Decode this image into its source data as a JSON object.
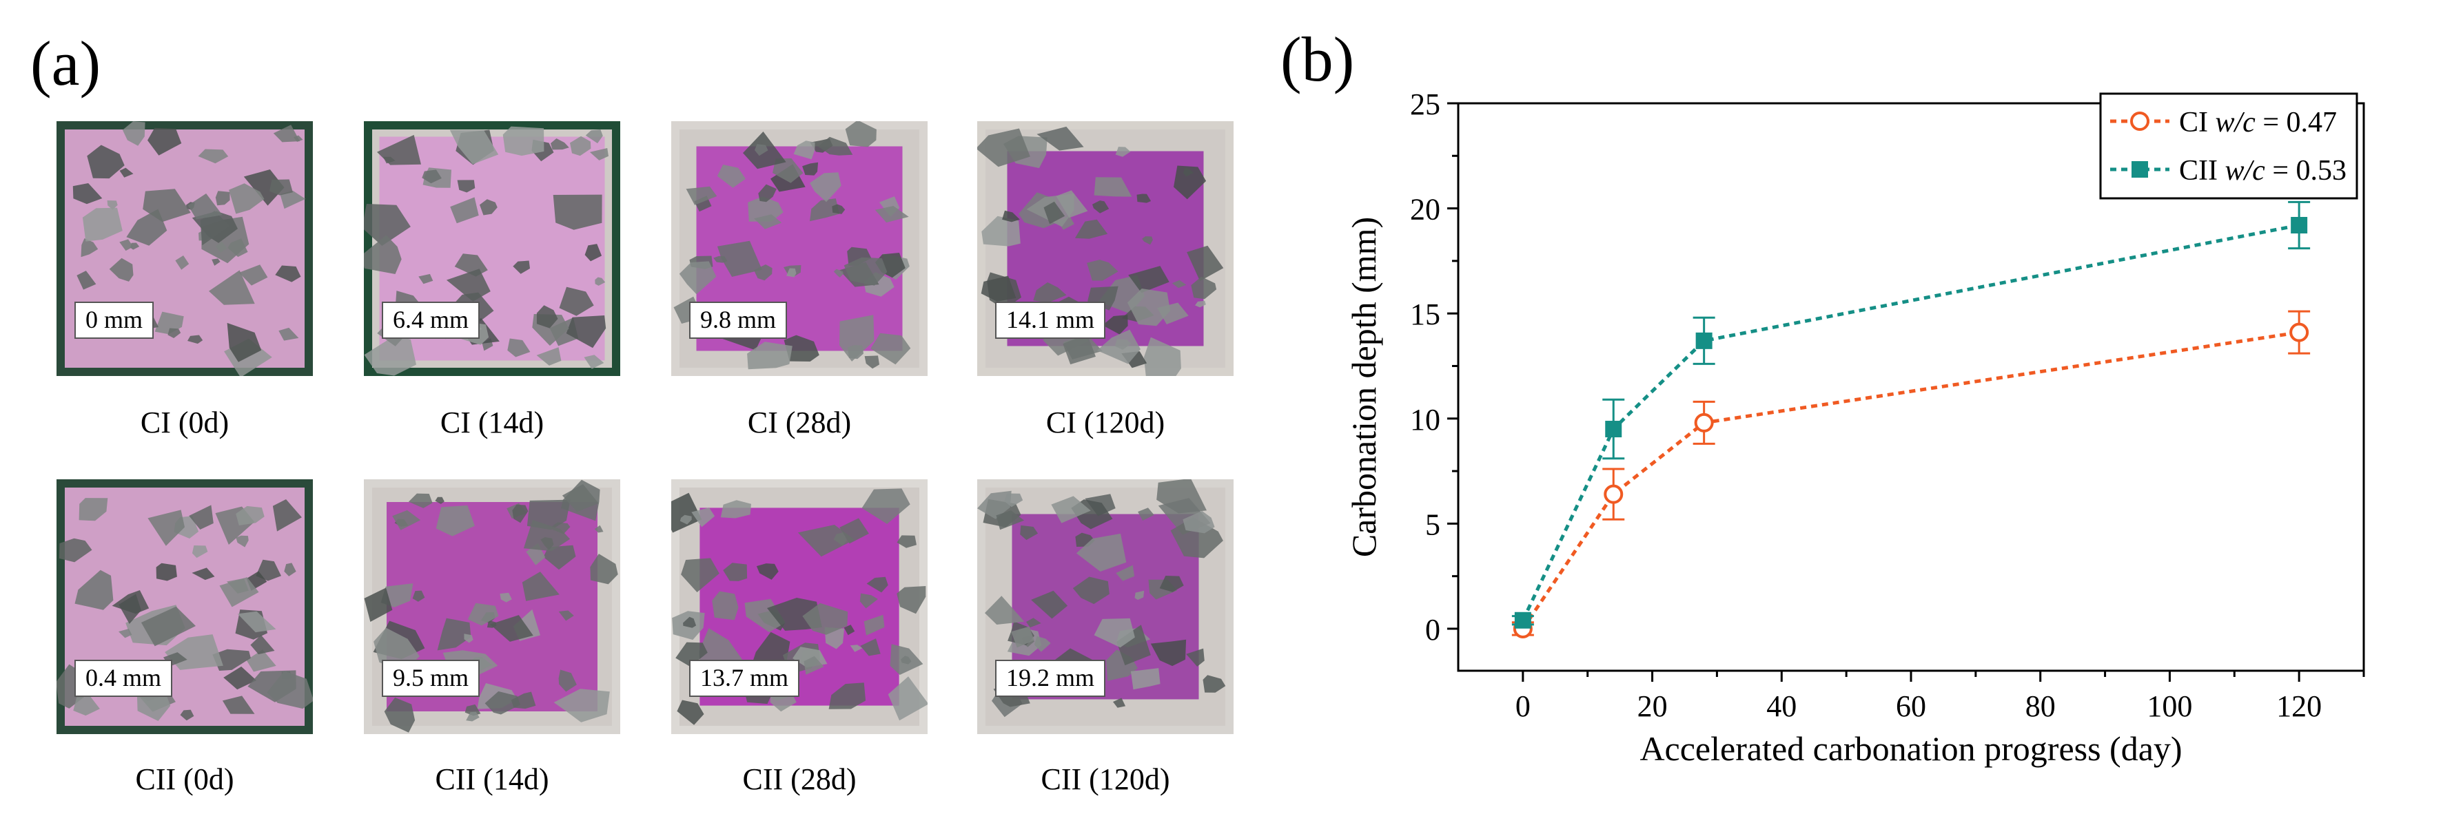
{
  "panels": {
    "a": "(a)",
    "b": "(b)"
  },
  "samples": [
    {
      "caption": "CI (0d)",
      "depth": "0 mm",
      "color": "#cf9fc6",
      "pink": 0.0,
      "frame": "#2a4a3a"
    },
    {
      "caption": "CI (14d)",
      "depth": "6.4 mm",
      "color": "#d59fcf",
      "pink": 0.15,
      "frame": "#1f4d36"
    },
    {
      "caption": "CI (28d)",
      "depth": "9.8 mm",
      "color": "#b650b8",
      "pink": 0.35,
      "frame": "#d8d4d0"
    },
    {
      "caption": "CI (120d)",
      "depth": "14.1 mm",
      "color": "#9f45aa",
      "pink": 0.45,
      "frame": "#d6d2cc"
    },
    {
      "caption": "CII (0d)",
      "depth": "0.4 mm",
      "color": "#cf9fc6",
      "pink": 0.0,
      "frame": "#2a4a3a"
    },
    {
      "caption": "CII (14d)",
      "depth": "9.5 mm",
      "color": "#b04fae",
      "pink": 0.3,
      "frame": "#d7d4d0"
    },
    {
      "caption": "CII (28d)",
      "depth": "13.7 mm",
      "color": "#b23fb4",
      "pink": 0.42,
      "frame": "#dcd9d5"
    },
    {
      "caption": "CII (120d)",
      "depth": "19.2 mm",
      "color": "#9e4aa6",
      "pink": 0.55,
      "frame": "#d6d3cf"
    }
  ],
  "chart_data": {
    "type": "line",
    "xlabel": "Accelerated carbonation progress (day)",
    "ylabel": "Carbonation depth (mm)",
    "xlim": [
      -10,
      130
    ],
    "ylim": [
      -2,
      25
    ],
    "xticks": [
      0,
      20,
      40,
      60,
      80,
      100,
      120
    ],
    "yticks": [
      0,
      5,
      10,
      15,
      20,
      25
    ],
    "x": [
      0,
      14,
      28,
      120
    ],
    "series": [
      {
        "name": "CI",
        "legend_main": "CI ",
        "legend_italic": "w/c",
        "legend_value": " = 0.47",
        "values": [
          0,
          6.4,
          9.8,
          14.1
        ],
        "errors": [
          0.3,
          1.2,
          1.0,
          1.0
        ],
        "color": "#f05a22",
        "marker": "circle-open"
      },
      {
        "name": "CII",
        "legend_main": "CII ",
        "legend_italic": "w/c",
        "legend_value": " = 0.53",
        "values": [
          0.4,
          9.5,
          13.7,
          19.2
        ],
        "errors": [
          0.2,
          1.4,
          1.1,
          1.1
        ],
        "color": "#158f86",
        "marker": "square-filled"
      }
    ],
    "legend_position": "top-right"
  }
}
